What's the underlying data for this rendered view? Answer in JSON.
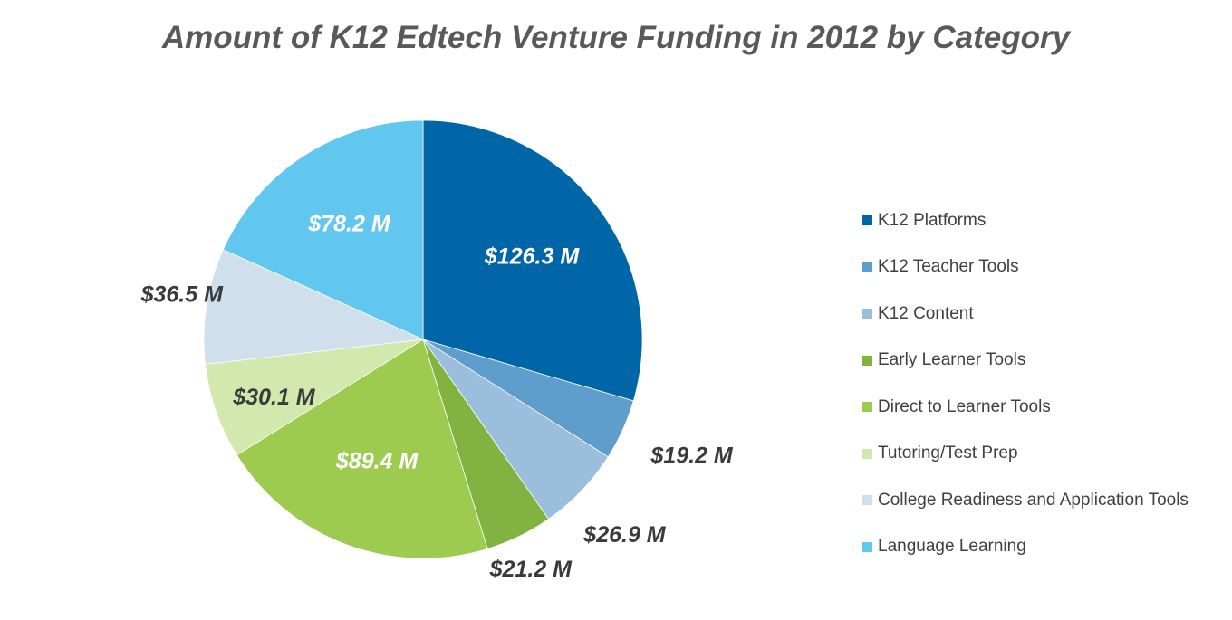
{
  "chart_data": {
    "type": "pie",
    "title": "Amount of K12 Edtech Venture Funding in 2012 by Category",
    "start_angle": "12 o'clock",
    "direction": "clockwise",
    "slices": [
      {
        "name": "K12 Platforms",
        "value": 126.3,
        "label": "$126.3 M",
        "color": "#0066A8",
        "label_color": "#ffffff"
      },
      {
        "name": "K12 Teacher Tools",
        "value": 19.2,
        "label": "$19.2 M",
        "color": "#5F9ECC",
        "label_color": "#3a3a3a"
      },
      {
        "name": "K12 Content",
        "value": 26.9,
        "label": "$26.9 M",
        "color": "#9BBEDD",
        "label_color": "#3a3a3a"
      },
      {
        "name": "Early Learner Tools",
        "value": 21.2,
        "label": "$21.2 M",
        "color": "#82B341",
        "label_color": "#3a3a3a"
      },
      {
        "name": "Direct to Learner Tools",
        "value": 89.4,
        "label": "$89.4 M",
        "color": "#9DCB4F",
        "label_color": "#ffffff"
      },
      {
        "name": "Tutoring/Test Prep",
        "value": 30.1,
        "label": "$30.1 M",
        "color": "#D3E8AD",
        "label_color": "#3a3a3a"
      },
      {
        "name": "College Readiness and Application Tools",
        "value": 36.5,
        "label": "$36.5 M",
        "color": "#CFDFEC",
        "label_color": "#3a3a3a"
      },
      {
        "name": "Language Learning",
        "value": 78.2,
        "label": "$78.2 M",
        "color": "#62C7EF",
        "label_color": "#ffffff"
      }
    ],
    "legend_position": "right"
  }
}
